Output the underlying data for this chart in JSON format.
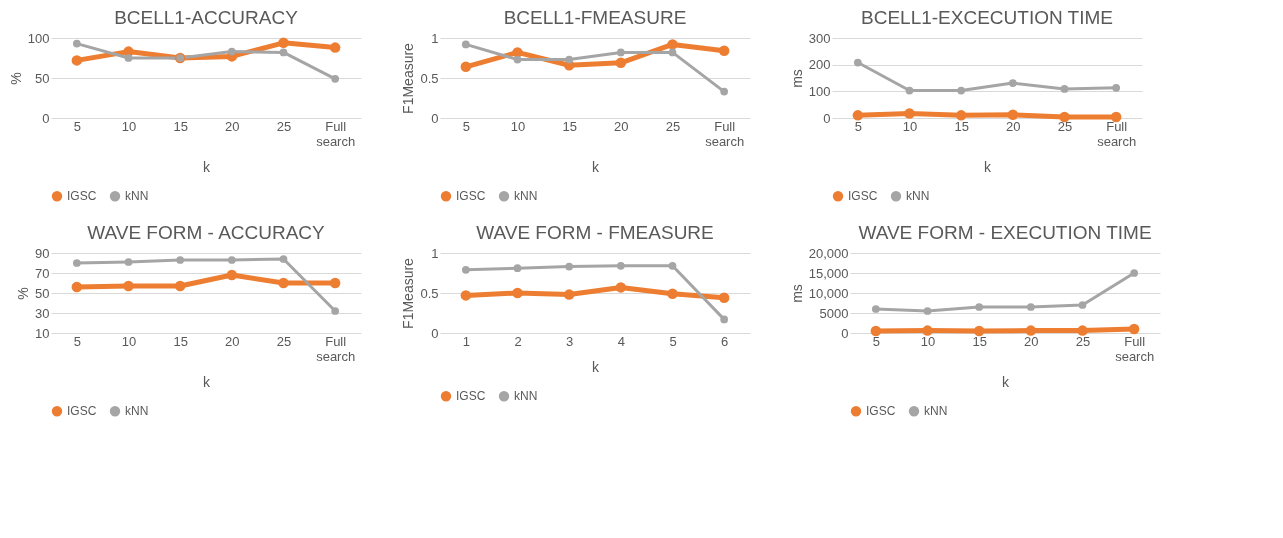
{
  "chart_data": [
    {
      "type": "line",
      "title": "BCELL1-ACCURACY",
      "xlabel": "k",
      "ylabel": "%",
      "categories": [
        "5",
        "10",
        "15",
        "20",
        "25",
        "Full search"
      ],
      "ylim": [
        0,
        100
      ],
      "yticks": [
        0,
        50,
        100
      ],
      "grid": "y",
      "legend": "bottom",
      "marker": "circle",
      "series": [
        {
          "name": "IGSC",
          "color": "#ed7d31",
          "values": [
            72,
            83,
            75,
            77,
            94,
            88
          ]
        },
        {
          "name": "kNN",
          "color": "#a5a5a5",
          "values": [
            93,
            75,
            75,
            83,
            82,
            49
          ]
        }
      ]
    },
    {
      "type": "line",
      "title": "BCELL1-FMEASURE",
      "xlabel": "k",
      "ylabel": "F1Measure",
      "categories": [
        "5",
        "10",
        "15",
        "20",
        "25",
        "Full search"
      ],
      "ylim": [
        0,
        1
      ],
      "yticks": [
        0,
        0.5,
        1
      ],
      "grid": "y",
      "legend": "bottom",
      "marker": "circle",
      "series": [
        {
          "name": "IGSC",
          "color": "#ed7d31",
          "values": [
            0.64,
            0.82,
            0.66,
            0.69,
            0.92,
            0.84
          ]
        },
        {
          "name": "kNN",
          "color": "#a5a5a5",
          "values": [
            0.92,
            0.73,
            0.73,
            0.82,
            0.82,
            0.33
          ]
        }
      ]
    },
    {
      "type": "line",
      "title": "BCELL1-EXCECUTION TIME",
      "xlabel": "k",
      "ylabel": "ms",
      "categories": [
        "5",
        "10",
        "15",
        "20",
        "25",
        "Full search"
      ],
      "ylim": [
        0,
        300
      ],
      "yticks": [
        0,
        100,
        200,
        300
      ],
      "grid": "y",
      "legend": "bottom",
      "marker": "circle",
      "series": [
        {
          "name": "IGSC",
          "color": "#ed7d31",
          "values": [
            10,
            17,
            10,
            12,
            4,
            4
          ]
        },
        {
          "name": "kNN",
          "color": "#a5a5a5",
          "values": [
            208,
            103,
            103,
            131,
            109,
            113
          ]
        }
      ]
    },
    {
      "type": "line",
      "title": "WAVE FORM - ACCURACY",
      "xlabel": "k",
      "ylabel": "%",
      "categories": [
        "5",
        "10",
        "15",
        "20",
        "25",
        "Full search"
      ],
      "ylim": [
        10,
        90
      ],
      "yticks": [
        10,
        30,
        50,
        70,
        90
      ],
      "grid": "y",
      "legend": "bottom",
      "marker": "circle",
      "series": [
        {
          "name": "IGSC",
          "color": "#ed7d31",
          "values": [
            56,
            57,
            57,
            68,
            60,
            60
          ]
        },
        {
          "name": "kNN",
          "color": "#a5a5a5",
          "values": [
            80,
            81,
            83,
            83,
            84,
            32
          ]
        }
      ]
    },
    {
      "type": "line",
      "title": "WAVE FORM - FMEASURE",
      "xlabel": "k",
      "ylabel": "F1Measure",
      "categories": [
        "1",
        "2",
        "3",
        "4",
        "5",
        "6"
      ],
      "ylim": [
        0,
        1
      ],
      "yticks": [
        0,
        0.5,
        1
      ],
      "grid": "y",
      "legend": "bottom",
      "marker": "circle",
      "series": [
        {
          "name": "IGSC",
          "color": "#ed7d31",
          "values": [
            0.47,
            0.5,
            0.48,
            0.57,
            0.49,
            0.44
          ]
        },
        {
          "name": "kNN",
          "color": "#a5a5a5",
          "values": [
            0.79,
            0.81,
            0.83,
            0.84,
            0.84,
            0.17
          ]
        }
      ]
    },
    {
      "type": "line",
      "title": "WAVE FORM - EXECUTION TIME",
      "xlabel": "k",
      "ylabel": "ms",
      "categories": [
        "5",
        "10",
        "15",
        "20",
        "25",
        "Full search"
      ],
      "ylim": [
        0,
        20000
      ],
      "yticks": [
        0,
        5000,
        {
          "value": 10000,
          "label": "10,000"
        },
        {
          "value": 15000,
          "label": "15,000"
        },
        {
          "value": 20000,
          "label": "20,000"
        }
      ],
      "grid": "y",
      "legend": "bottom",
      "marker": "circle",
      "series": [
        {
          "name": "IGSC",
          "color": "#ed7d31",
          "values": [
            500,
            600,
            500,
            600,
            600,
            1000
          ]
        },
        {
          "name": "kNN",
          "color": "#a5a5a5",
          "values": [
            6000,
            5500,
            6500,
            6500,
            7000,
            15000
          ]
        }
      ]
    }
  ]
}
